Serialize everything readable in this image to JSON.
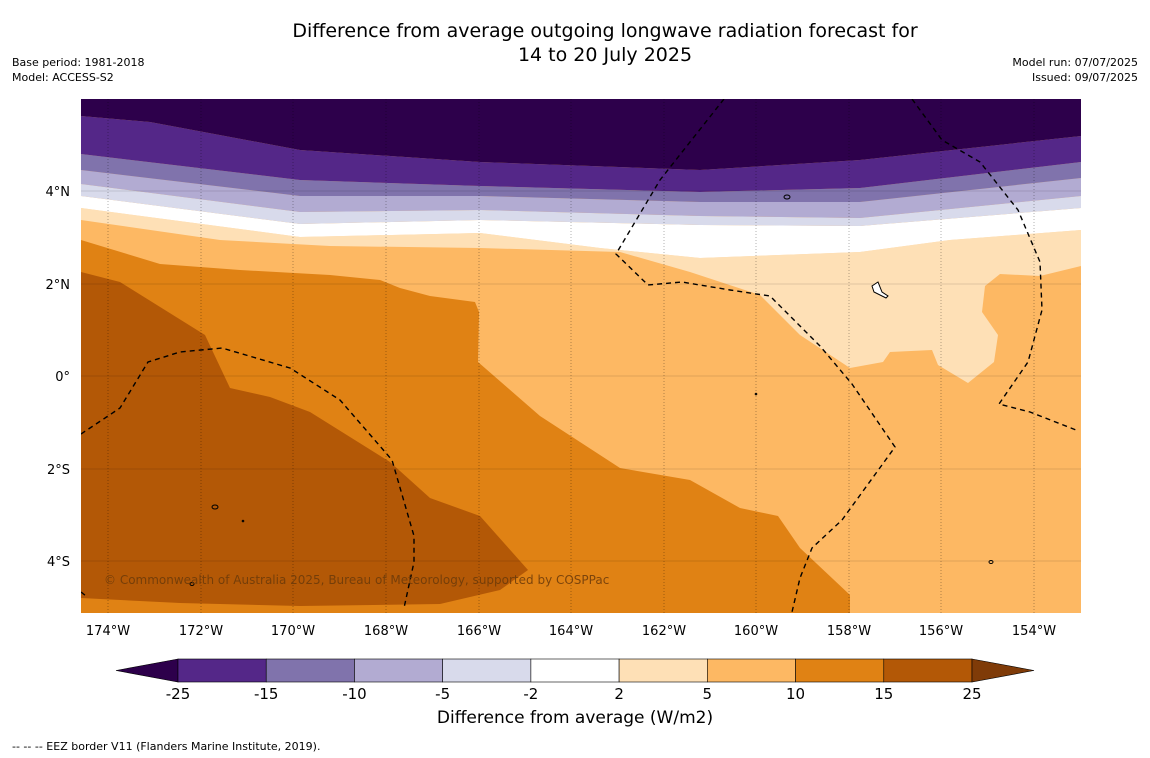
{
  "header": {
    "title_line1": "Difference from average outgoing longwave radiation forecast for",
    "title_line2": "14 to 20 July 2025",
    "base_period": "Base period: 1981-2018",
    "model": "Model: ACCESS-S2",
    "model_run": "Model run: 07/07/2025",
    "issued": "Issued: 09/07/2025"
  },
  "map": {
    "lon_labels": [
      "174°W",
      "172°W",
      "170°W",
      "168°W",
      "166°W",
      "164°W",
      "162°W",
      "160°W",
      "158°W",
      "156°W",
      "154°W"
    ],
    "lat_labels": [
      "4°N",
      "2°N",
      "0°",
      "2°S",
      "4°S"
    ],
    "copyright": "© Commonwealth of Australia 2025, Bureau of Meteorology, supported by COSPPac"
  },
  "colorbar": {
    "ticks": [
      "-25",
      "-15",
      "-10",
      "-5",
      "-2",
      "2",
      "5",
      "10",
      "15",
      "25"
    ],
    "colors": [
      "#2d004b",
      "#542788",
      "#8073ac",
      "#b2abd2",
      "#d8daeb",
      "#ffffff",
      "#fee0b6",
      "#fdb863",
      "#e08214",
      "#b35806",
      "#7f3b08"
    ],
    "label": "Difference from average (W/m2)"
  },
  "footer": {
    "eez_note": "--  --  -- EEZ border V11 (Flanders Marine Institute, 2019)."
  }
}
